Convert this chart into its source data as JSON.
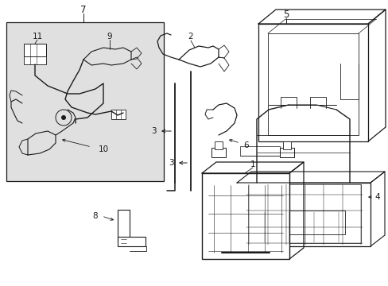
{
  "bg_color": "#ffffff",
  "line_color": "#1a1a1a",
  "box_bg": "#e0e0e0",
  "fig_w": 4.89,
  "fig_h": 3.6,
  "dpi": 100
}
